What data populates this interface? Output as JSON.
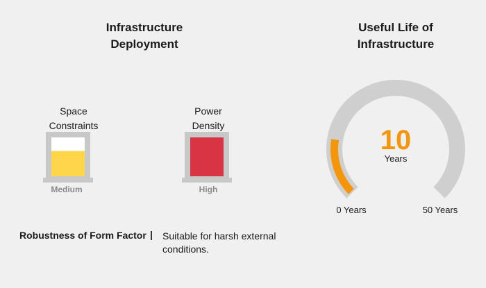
{
  "deployment": {
    "title": "Infrastructure\nDeployment",
    "meters": [
      {
        "label": "Space\nConstraints",
        "level_text": "Medium",
        "fill_fraction": 0.65,
        "fill_color": "#ffd54a"
      },
      {
        "label": "Power\nDensity",
        "level_text": "High",
        "fill_fraction": 1.0,
        "fill_color": "#d93444"
      }
    ],
    "meter_frame_color": "#c8c8c8"
  },
  "useful_life": {
    "title": "Useful Life of\nInfrastructure",
    "value": "10",
    "unit": "Years",
    "min_label": "0 Years",
    "max_label": "50 Years",
    "min": 0,
    "max": 50,
    "current": 10,
    "accent_color": "#f5960a",
    "track_color": "#cfcfcf"
  },
  "robustness": {
    "label": "Robustness of Form Factor",
    "separator": "|",
    "description": "Suitable for harsh external conditions."
  }
}
